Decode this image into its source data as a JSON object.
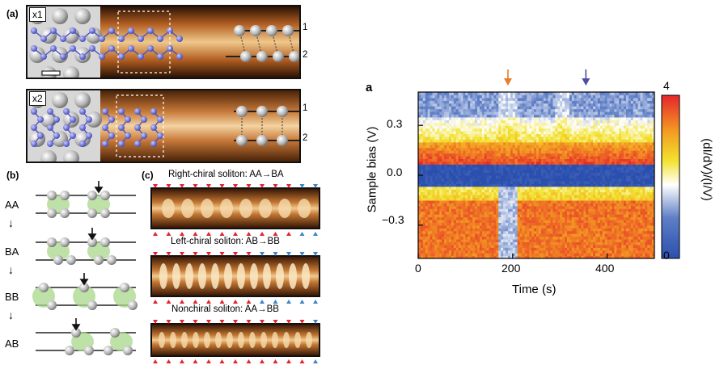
{
  "left_figure": {
    "panel_a_label": "(a)",
    "panel_b_label": "(b)",
    "panel_c_label": "(c)",
    "tag_x1": "x1",
    "tag_x2": "x2",
    "layer_1": "1",
    "layer_2": "2",
    "stacking_labels": [
      "AA",
      "BA",
      "BB",
      "AB"
    ],
    "soliton_captions": [
      "Right-chiral soliton: AA→BA",
      "Left-chiral soliton: AB→BB",
      "Nonchiral soliton: AA→BB"
    ],
    "colors": {
      "stm_orange": "#c9752a",
      "atom_blue": "#5a5fc8",
      "marker_red": "#e0262e",
      "marker_blue": "#3d84c8"
    }
  },
  "right_figure": {
    "panel_label": "a",
    "ylabel": "Sample bias (V)",
    "xlabel": "Time (s)",
    "colorbar_label": "(dI/dV)/(I/V)",
    "colorbar_max": "4",
    "colorbar_min": "0",
    "y_ticks": [
      "0.3",
      "0.0",
      "−0.3"
    ],
    "x_ticks": [
      "0",
      "200",
      "400"
    ],
    "arrow_colors": {
      "orange": "#ec7a2c",
      "purple": "#4a4fa6"
    }
  },
  "chart_data": {
    "type": "heatmap",
    "title": "",
    "xlabel": "Time (s)",
    "ylabel": "Sample bias (V)",
    "colorbar_label": "(dI/dV)/(I/V)",
    "xlim": [
      0,
      500
    ],
    "ylim": [
      -0.5,
      0.5
    ],
    "clim": [
      0,
      4
    ],
    "x_ticks": [
      0,
      200,
      400
    ],
    "y_ticks": [
      -0.3,
      0.0,
      0.3
    ],
    "arrows_at_time_s": [
      190,
      355
    ],
    "colormap": [
      "#2b4fae",
      "#ffffff",
      "#f2e22e",
      "#f39a23",
      "#e5262b"
    ]
  }
}
